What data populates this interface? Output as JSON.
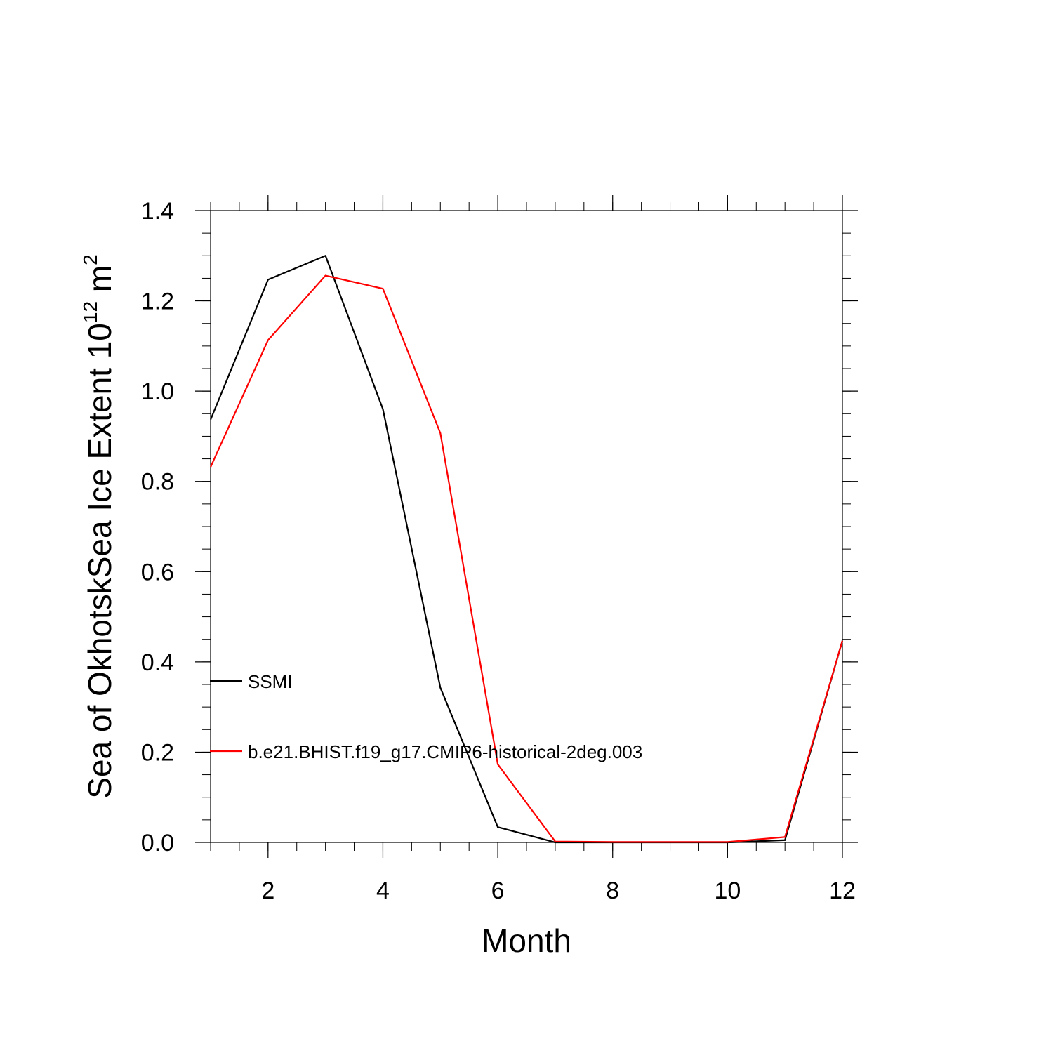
{
  "chart_data": {
    "type": "line",
    "xlabel": "Month",
    "ylabel": "Sea of OkhotskSea Ice Extent 10",
    "ylabel_sup1": "12",
    "ylabel_unit": " m",
    "ylabel_sup2": "2",
    "xlim": [
      1,
      12
    ],
    "ylim": [
      0,
      1.4
    ],
    "x": [
      1,
      2,
      3,
      4,
      5,
      6,
      7,
      8,
      9,
      10,
      11,
      12
    ],
    "x_ticks": [
      2,
      4,
      6,
      8,
      10,
      12
    ],
    "x_tick_labels": [
      "2",
      "4",
      "6",
      "8",
      "10",
      "12"
    ],
    "y_ticks": [
      0.0,
      0.2,
      0.4,
      0.6,
      0.8,
      1.0,
      1.2,
      1.4
    ],
    "y_tick_labels": [
      "0.0",
      "0.2",
      "0.4",
      "0.6",
      "0.8",
      "1.0",
      "1.2",
      "1.4"
    ],
    "grid": false,
    "legend_position": "inside-left",
    "series": [
      {
        "name": "SSMI",
        "color": "#000000",
        "values": [
          0.937,
          1.247,
          1.3,
          0.96,
          0.343,
          0.034,
          0.0,
          0.0,
          0.0,
          0.0,
          0.005,
          0.447
        ]
      },
      {
        "name": "b.e21.BHIST.f19_g17.CMIP6-historical-2deg.003",
        "color": "#ff0000",
        "values": [
          0.832,
          1.113,
          1.256,
          1.227,
          0.907,
          0.173,
          0.002,
          0.001,
          0.001,
          0.001,
          0.012,
          0.447
        ]
      }
    ]
  }
}
